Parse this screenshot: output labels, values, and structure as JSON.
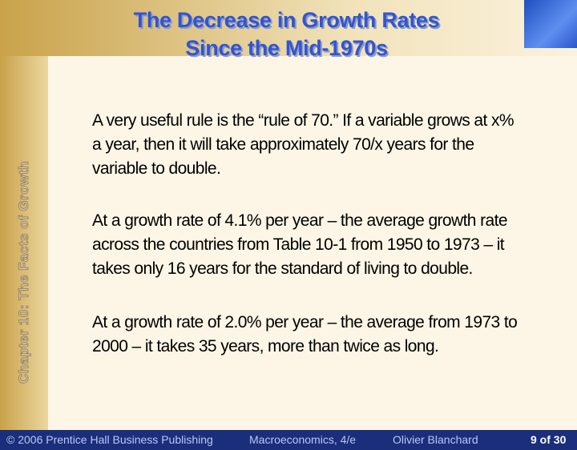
{
  "title": [
    "The Decrease in Growth Rates",
    "Since the Mid-1970s"
  ],
  "side_label": "Chapter 10: The Facts of Growth",
  "paragraphs": [
    "A very useful rule is the “rule of 70.” If a variable grows at x% a year, then it will take approximately 70/x years for the variable to double.",
    "At a growth rate of 4.1% per year – the average growth rate across the countries from Table 10-1 from 1950 to 1973 – it takes only 16 years for the standard of living to double.",
    "At a growth rate of 2.0% per year – the average from 1973 to 2000 – it takes 35 years, more than twice as long."
  ],
  "footer": {
    "copyright": "© 2006 Prentice Hall Business Publishing",
    "book": "Macroeconomics, 4/e",
    "author": "Olivier Blanchard",
    "page": "9 of 30"
  }
}
